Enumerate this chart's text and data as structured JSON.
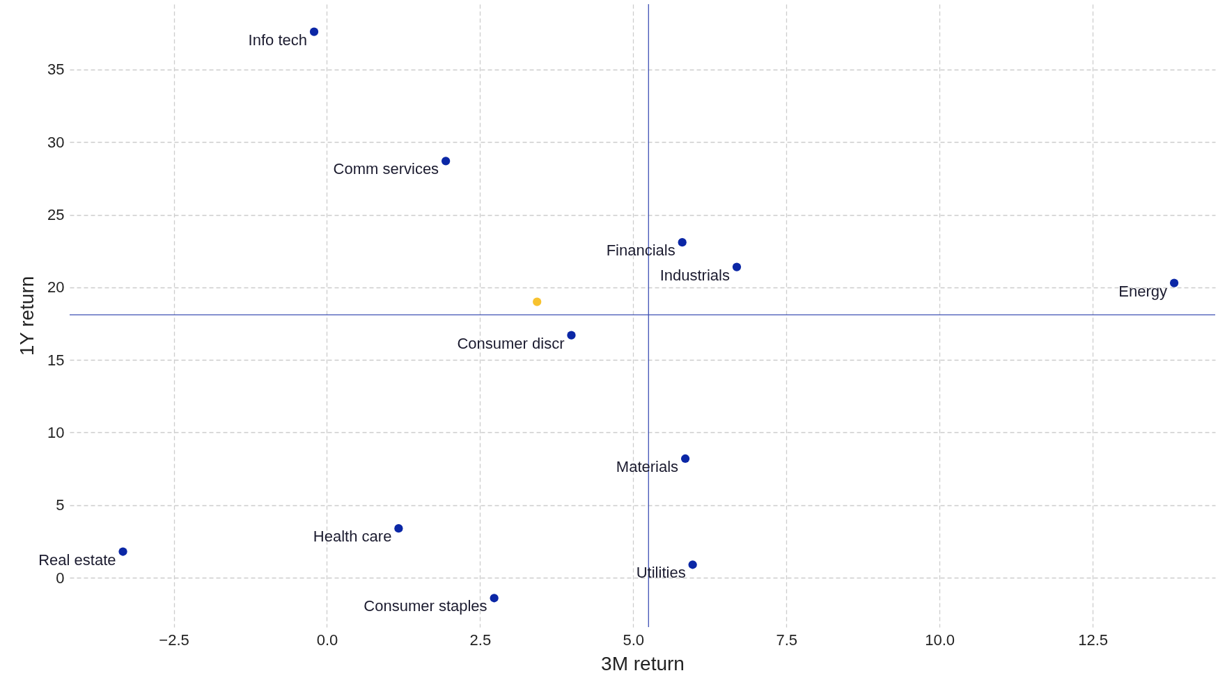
{
  "chart_data": {
    "type": "scatter",
    "xlabel": "3M return",
    "ylabel": "1Y return",
    "x": [
      -0.21,
      1.94,
      5.8,
      6.69,
      13.83,
      3.43,
      3.99,
      5.85,
      1.17,
      -3.33,
      5.97,
      2.73
    ],
    "values": [
      37.6,
      28.7,
      23.1,
      21.4,
      20.3,
      19.0,
      16.7,
      8.2,
      3.4,
      1.8,
      0.9,
      -1.4
    ],
    "colors": [
      "#0b27a6",
      "#0b27a6",
      "#0b27a6",
      "#0b27a6",
      "#0b27a6",
      "#f7c22f",
      "#0b27a6",
      "#0b27a6",
      "#0b27a6",
      "#0b27a6",
      "#0b27a6",
      "#0b27a6"
    ],
    "annotations": [
      {
        "text": "Info tech",
        "x": -0.21,
        "y": 37.6
      },
      {
        "text": "Comm services",
        "x": 1.94,
        "y": 28.7
      },
      {
        "text": "Financials",
        "x": 5.8,
        "y": 23.1
      },
      {
        "text": "Industrials",
        "x": 6.69,
        "y": 21.4
      },
      {
        "text": "Energy",
        "x": 13.83,
        "y": 20.3
      },
      {
        "text": "Consumer discr",
        "x": 3.99,
        "y": 16.7
      },
      {
        "text": "Materials",
        "x": 5.85,
        "y": 8.2
      },
      {
        "text": "Health care",
        "x": 1.17,
        "y": 3.4
      },
      {
        "text": "Real estate",
        "x": -3.33,
        "y": 1.8
      },
      {
        "text": "Utilities",
        "x": 5.97,
        "y": 0.9
      },
      {
        "text": "Consumer staples",
        "x": 2.73,
        "y": -1.4
      }
    ],
    "ref_lines": [
      {
        "axis": "x",
        "value": 5.25,
        "color": "#3f51b5"
      },
      {
        "axis": "y",
        "value": 18.1,
        "color": "#3f51b5"
      }
    ],
    "xlim": [
      -4.2,
      14.5
    ],
    "ylim": [
      -3.4,
      39.5
    ],
    "xticks": [
      {
        "value": -2.5,
        "label": "−2.5"
      },
      {
        "value": 0,
        "label": "0.0"
      },
      2.5,
      {
        "value": 5,
        "label": "5.0"
      },
      7.5,
      {
        "value": 10,
        "label": "10.0"
      },
      12.5
    ],
    "yticks": [
      0,
      5,
      10,
      15,
      20,
      25,
      30,
      35
    ],
    "grid": true,
    "marker": "circle"
  }
}
